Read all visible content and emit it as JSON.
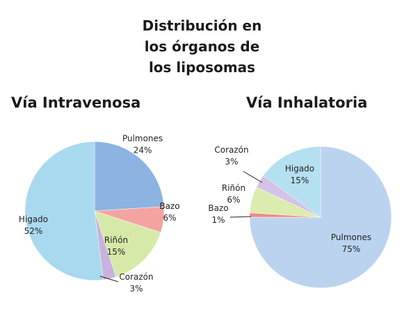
{
  "title_lines": [
    "Distribución en",
    "los órganos de",
    "los liposomas"
  ],
  "chart_data": [
    {
      "type": "pie",
      "title": "Vía Intravenosa",
      "slices": [
        {
          "label": "Pulmones",
          "value": 24,
          "value_label": "24%",
          "color": "#8db3e2"
        },
        {
          "label": "Bazo",
          "value": 6,
          "value_label": "6%",
          "color": "#f4a3a0"
        },
        {
          "label": "Riñón",
          "value": 15,
          "value_label": "15%",
          "color": "#d7e9a8"
        },
        {
          "label": "Corazón",
          "value": 3,
          "value_label": "3%",
          "color": "#c9b3dd"
        },
        {
          "label": "Higado",
          "value": 52,
          "value_label": "52%",
          "color": "#a9d9ef"
        }
      ]
    },
    {
      "type": "pie",
      "title": "Vía Inhalatoria",
      "slices": [
        {
          "label": "Pulmones",
          "value": 75,
          "value_label": "75%",
          "color": "#bcd3f0"
        },
        {
          "label": "Bazo",
          "value": 1,
          "value_label": "1%",
          "color": "#f08c84"
        },
        {
          "label": "Riñón",
          "value": 6,
          "value_label": "6%",
          "color": "#dcecae"
        },
        {
          "label": "Corazón",
          "value": 3,
          "value_label": "3%",
          "color": "#d4c3e6"
        },
        {
          "label": "Higado",
          "value": 15,
          "value_label": "15%",
          "color": "#b5e0f1"
        }
      ]
    }
  ]
}
